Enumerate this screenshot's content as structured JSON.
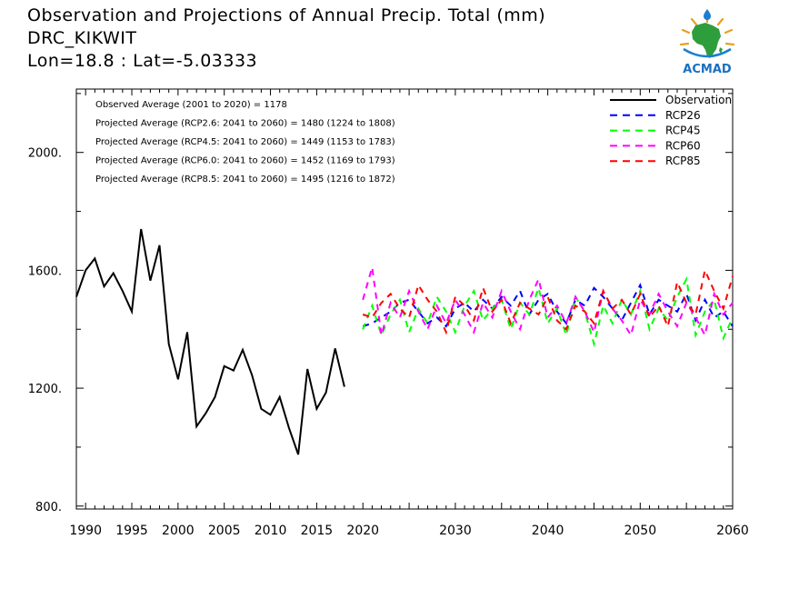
{
  "header": {
    "title": "Observation and Projections of Annual Precip. Total (mm)",
    "station": "DRC_KIKWIT",
    "location": "Lon=18.8 : Lat=-5.03333"
  },
  "logo": {
    "text": "ACMAD",
    "icon": "africa-map-logo"
  },
  "annotations": [
    "Observed Average (2001 to 2020) = 1178",
    "Projected Average (RCP2.6: 2041 to 2060) = 1480 (1224 to 1808)",
    "Projected Average (RCP4.5: 2041 to 2060) = 1449 (1153 to 1783)",
    "Projected Average (RCP6.0: 2041 to 2060) = 1452 (1169 to 1793)",
    "Projected Average (RCP8.5: 2041 to 2060) = 1495 (1216 to 1872)"
  ],
  "chart_data": {
    "type": "line",
    "title": "Observation and Projections of Annual Precip. Total (mm)",
    "xlabel": "",
    "ylabel": "",
    "xlim": [
      1989,
      2060
    ],
    "ylim": [
      790,
      2215
    ],
    "x_ticks": [
      1990,
      1995,
      2000,
      2005,
      2010,
      2015,
      2020,
      2030,
      2040,
      2050,
      2060
    ],
    "y_ticks": [
      800,
      1200,
      1600,
      2000
    ],
    "y_tick_labels": [
      "800.",
      "1200.",
      "1600.",
      "2000."
    ],
    "legend_position": "top-right",
    "grid": false,
    "series": [
      {
        "name": "Observation",
        "color": "#000000",
        "style": "solid",
        "x": [
          1989,
          1990,
          1991,
          1992,
          1993,
          1994,
          1995,
          1996,
          1997,
          1998,
          1999,
          2000,
          2001,
          2002,
          2003,
          2004,
          2005,
          2006,
          2007,
          2008,
          2009,
          2010,
          2011,
          2012,
          2013,
          2014,
          2015,
          2016,
          2017,
          2018,
          2019,
          2020
        ],
        "values": [
          1510,
          1600,
          1640,
          1545,
          1590,
          1530,
          1460,
          1740,
          1565,
          1685,
          1350,
          1230,
          1390,
          1070,
          1115,
          1170,
          1275,
          1260,
          1330,
          1245,
          1130,
          1110,
          1170,
          1065,
          975,
          1265,
          1130,
          1185,
          1335,
          1205,
          null,
          null
        ]
      },
      {
        "name": "RCP26",
        "color": "#0000ff",
        "style": "dashed",
        "x_start": 2020,
        "values": [
          1410,
          1420,
          1440,
          1460,
          1490,
          1500,
          1460,
          1420,
          1440,
          1410,
          1470,
          1490,
          1460,
          1500,
          1470,
          1510,
          1480,
          1530,
          1450,
          1500,
          1520,
          1460,
          1420,
          1500,
          1480,
          1540,
          1510,
          1470,
          1430,
          1490,
          1550,
          1450,
          1500,
          1480,
          1460,
          1520,
          1430,
          1500,
          1440,
          1460,
          1410
        ]
      },
      {
        "name": "RCP45",
        "color": "#00ff00",
        "style": "dashed",
        "x_start": 2020,
        "values": [
          1400,
          1480,
          1380,
          1450,
          1500,
          1390,
          1470,
          1420,
          1510,
          1460,
          1390,
          1480,
          1530,
          1430,
          1470,
          1500,
          1400,
          1490,
          1450,
          1540,
          1420,
          1470,
          1380,
          1510,
          1460,
          1350,
          1480,
          1420,
          1500,
          1450,
          1530,
          1400,
          1470,
          1430,
          1510,
          1570,
          1380,
          1460,
          1500,
          1370,
          1440
        ]
      },
      {
        "name": "RCP60",
        "color": "#ff00ff",
        "style": "dashed",
        "x_start": 2020,
        "values": [
          1500,
          1610,
          1380,
          1490,
          1440,
          1530,
          1460,
          1400,
          1480,
          1420,
          1500,
          1450,
          1390,
          1490,
          1440,
          1530,
          1460,
          1400,
          1500,
          1570,
          1440,
          1480,
          1420,
          1510,
          1460,
          1390,
          1530,
          1470,
          1430,
          1380,
          1500,
          1450,
          1520,
          1460,
          1410,
          1490,
          1440,
          1380,
          1520,
          1450,
          1490
        ]
      },
      {
        "name": "RCP85",
        "color": "#ff0000",
        "style": "dashed",
        "x_start": 2020,
        "values": [
          1450,
          1440,
          1490,
          1520,
          1470,
          1440,
          1550,
          1500,
          1460,
          1390,
          1510,
          1480,
          1430,
          1540,
          1460,
          1500,
          1420,
          1490,
          1470,
          1450,
          1510,
          1430,
          1400,
          1480,
          1460,
          1420,
          1530,
          1470,
          1500,
          1450,
          1520,
          1440,
          1480,
          1410,
          1560,
          1490,
          1450,
          1600,
          1530,
          1470,
          1580
        ]
      }
    ]
  }
}
